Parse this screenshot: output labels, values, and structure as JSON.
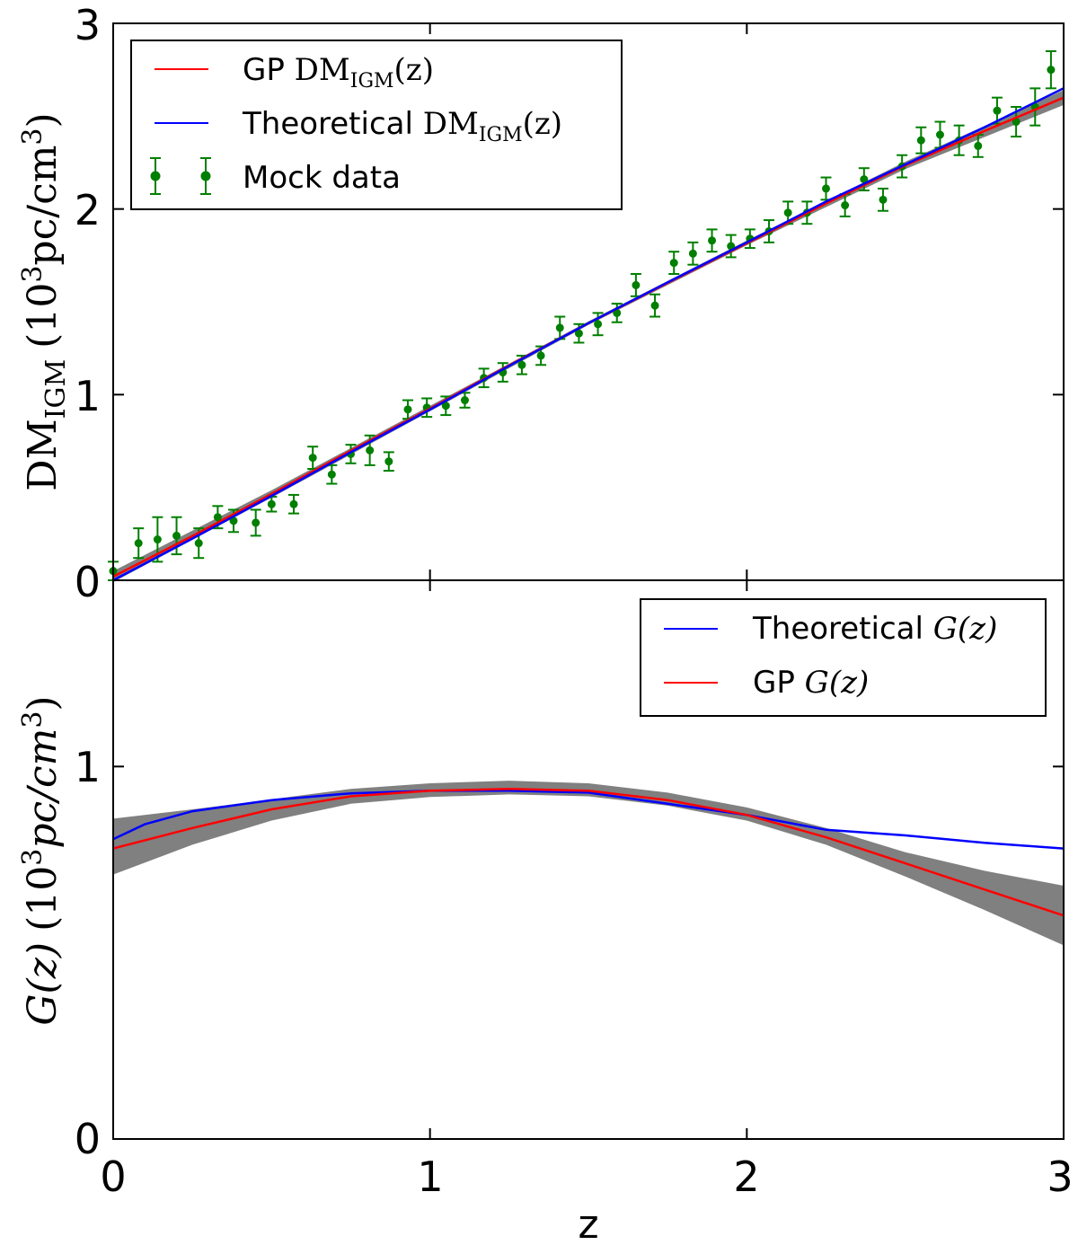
{
  "chart_data": [
    {
      "type": "line",
      "panel": "top",
      "ylabel": "DM_IGM (10^3 pc/cm^3)",
      "ylabel_main": "DM",
      "ylabel_sub": "IGM",
      "ylabel_units": "(10",
      "ylabel_exp": "3",
      "ylabel_rest": "pc/cm",
      "ylabel_exp2": "3",
      "ylabel_close": ")",
      "xlim": [
        0,
        3
      ],
      "ylim": [
        0,
        3
      ],
      "yticks": [
        "0",
        "1",
        "2",
        "3"
      ],
      "legend_position": "upper-left",
      "legend": {
        "gp": {
          "prefix": "GP ",
          "math": "DM",
          "sub": "IGM",
          "suffix": "(z)"
        },
        "theory": {
          "prefix": "Theoretical ",
          "math": "DM",
          "sub": "IGM",
          "suffix": "(z)"
        },
        "mock": {
          "label": "Mock data"
        }
      },
      "colors": {
        "gp": "#ff0000",
        "theory": "#0000ff",
        "mock": "#007f00",
        "band": "#808080"
      },
      "series": [
        {
          "name": "Theoretical DM_IGM(z)",
          "x": [
            0,
            0.25,
            0.5,
            0.75,
            1.0,
            1.25,
            1.5,
            1.75,
            2.0,
            2.25,
            2.5,
            2.75,
            3.0
          ],
          "y": [
            0,
            0.225,
            0.455,
            0.69,
            0.92,
            1.155,
            1.385,
            1.605,
            1.82,
            2.04,
            2.24,
            2.44,
            2.65
          ]
        },
        {
          "name": "GP DM_IGM(z)",
          "x": [
            0,
            0.25,
            0.5,
            0.75,
            1.0,
            1.25,
            1.5,
            1.75,
            2.0,
            2.25,
            2.5,
            2.75,
            3.0
          ],
          "y": [
            0.02,
            0.238,
            0.465,
            0.698,
            0.925,
            1.158,
            1.385,
            1.602,
            1.815,
            2.03,
            2.235,
            2.42,
            2.6
          ]
        },
        {
          "name": "GP band",
          "x": [
            0,
            0.5,
            1.0,
            1.5,
            2.0,
            2.5,
            3.0
          ],
          "lower": [
            -0.01,
            0.445,
            0.91,
            1.375,
            1.805,
            2.215,
            2.56
          ],
          "upper": [
            0.05,
            0.485,
            0.94,
            1.395,
            1.83,
            2.255,
            2.64
          ]
        },
        {
          "name": "Mock data",
          "x": [
            0.0,
            0.08,
            0.14,
            0.2,
            0.27,
            0.33,
            0.38,
            0.45,
            0.5,
            0.57,
            0.63,
            0.69,
            0.75,
            0.81,
            0.87,
            0.93,
            0.99,
            1.05,
            1.11,
            1.17,
            1.23,
            1.29,
            1.35,
            1.41,
            1.47,
            1.53,
            1.59,
            1.65,
            1.71,
            1.77,
            1.83,
            1.89,
            1.95,
            2.01,
            2.07,
            2.13,
            2.19,
            2.25,
            2.31,
            2.37,
            2.43,
            2.49,
            2.55,
            2.61,
            2.67,
            2.73,
            2.79,
            2.85,
            2.91,
            2.96
          ],
          "y": [
            0.05,
            0.2,
            0.22,
            0.24,
            0.2,
            0.34,
            0.32,
            0.31,
            0.41,
            0.41,
            0.66,
            0.57,
            0.68,
            0.7,
            0.64,
            0.92,
            0.93,
            0.94,
            0.97,
            1.09,
            1.12,
            1.16,
            1.21,
            1.36,
            1.33,
            1.38,
            1.44,
            1.59,
            1.48,
            1.71,
            1.76,
            1.83,
            1.8,
            1.84,
            1.88,
            1.98,
            1.98,
            2.11,
            2.02,
            2.16,
            2.05,
            2.23,
            2.37,
            2.4,
            2.37,
            2.34,
            2.53,
            2.47,
            2.55,
            2.75
          ],
          "err": [
            0.05,
            0.08,
            0.12,
            0.1,
            0.08,
            0.06,
            0.06,
            0.07,
            0.04,
            0.05,
            0.06,
            0.05,
            0.05,
            0.08,
            0.05,
            0.05,
            0.05,
            0.05,
            0.04,
            0.05,
            0.05,
            0.05,
            0.05,
            0.06,
            0.05,
            0.06,
            0.05,
            0.06,
            0.06,
            0.06,
            0.06,
            0.06,
            0.06,
            0.05,
            0.06,
            0.06,
            0.06,
            0.06,
            0.06,
            0.06,
            0.06,
            0.06,
            0.07,
            0.07,
            0.08,
            0.06,
            0.07,
            0.08,
            0.1,
            0.1
          ]
        }
      ]
    },
    {
      "type": "line",
      "panel": "bottom",
      "xlabel": "z",
      "ylabel": "G(z) (10^3 pc/cm^3)",
      "ylabel_main": "G(z)",
      "ylabel_units": "(10",
      "ylabel_exp": "3",
      "ylabel_rest": "pc/cm",
      "ylabel_exp2": "3",
      "ylabel_close": ")",
      "xlim": [
        0,
        3
      ],
      "ylim": [
        0,
        1.5
      ],
      "xticks": [
        "0",
        "1",
        "2",
        "3"
      ],
      "yticks": [
        "0",
        "1"
      ],
      "legend_position": "upper-right",
      "legend": {
        "theory": {
          "prefix": "Theoretical ",
          "math": "G(z)"
        },
        "gp": {
          "prefix": "GP ",
          "math": "G(z)"
        }
      },
      "colors": {
        "gp": "#ff0000",
        "theory": "#0000ff",
        "band": "#808080"
      },
      "series": [
        {
          "name": "Theoretical G(z)",
          "x": [
            0,
            0.1,
            0.25,
            0.5,
            0.75,
            1.0,
            1.25,
            1.5,
            1.75,
            2.0,
            2.25,
            2.5,
            2.75,
            3.0
          ],
          "y": [
            0.805,
            0.845,
            0.88,
            0.91,
            0.928,
            0.935,
            0.935,
            0.93,
            0.9,
            0.87,
            0.83,
            0.815,
            0.795,
            0.78
          ]
        },
        {
          "name": "GP G(z)",
          "x": [
            0,
            0.25,
            0.5,
            0.75,
            1.0,
            1.25,
            1.5,
            1.75,
            2.0,
            2.25,
            2.5,
            2.75,
            3.0
          ],
          "y": [
            0.78,
            0.835,
            0.885,
            0.92,
            0.935,
            0.94,
            0.935,
            0.91,
            0.87,
            0.81,
            0.74,
            0.67,
            0.6
          ]
        },
        {
          "name": "GP band",
          "x": [
            0,
            0.25,
            0.5,
            0.75,
            1.0,
            1.25,
            1.5,
            1.75,
            2.0,
            2.25,
            2.5,
            2.75,
            3.0
          ],
          "lower": [
            0.71,
            0.79,
            0.855,
            0.9,
            0.918,
            0.925,
            0.92,
            0.895,
            0.855,
            0.79,
            0.705,
            0.615,
            0.52
          ],
          "upper": [
            0.86,
            0.885,
            0.912,
            0.94,
            0.955,
            0.962,
            0.955,
            0.93,
            0.89,
            0.835,
            0.77,
            0.72,
            0.68
          ]
        }
      ]
    }
  ]
}
